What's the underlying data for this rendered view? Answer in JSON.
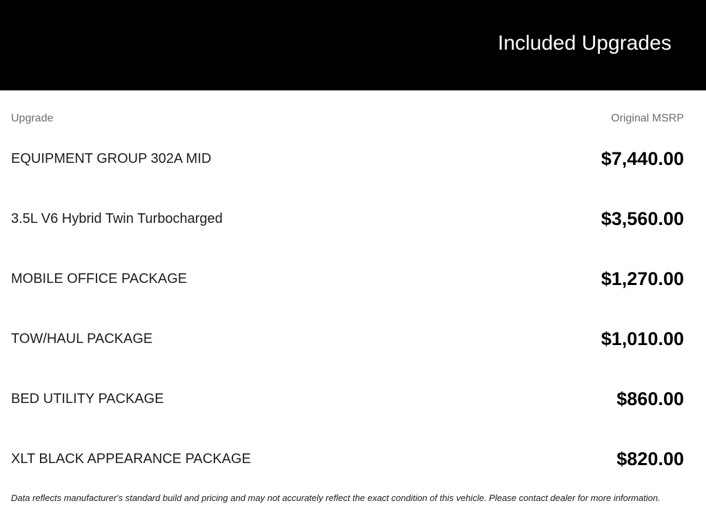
{
  "banner": {
    "title": "Included Upgrades"
  },
  "table": {
    "columns": {
      "upgrade": "Upgrade",
      "msrp": "Original MSRP"
    },
    "rows": [
      {
        "label": "EQUIPMENT GROUP 302A MID",
        "price": "$7,440.00"
      },
      {
        "label": "3.5L V6 Hybrid Twin Turbocharged",
        "price": "$3,560.00"
      },
      {
        "label": "MOBILE OFFICE PACKAGE",
        "price": "$1,270.00"
      },
      {
        "label": "TOW/HAUL PACKAGE",
        "price": "$1,010.00"
      },
      {
        "label": "BED UTILITY PACKAGE",
        "price": "$860.00"
      },
      {
        "label": "XLT BLACK APPEARANCE PACKAGE",
        "price": "$820.00"
      }
    ]
  },
  "disclaimer": "Data reflects manufacturer's standard build and pricing and may not accurately reflect the exact condition of this vehicle. Please contact dealer for more information.",
  "colors": {
    "banner_bg": "#000000",
    "banner_text": "#ffffff",
    "column_header_text": "#6e6e6e",
    "label_text": "#1c1c1c",
    "price_text": "#000000"
  }
}
